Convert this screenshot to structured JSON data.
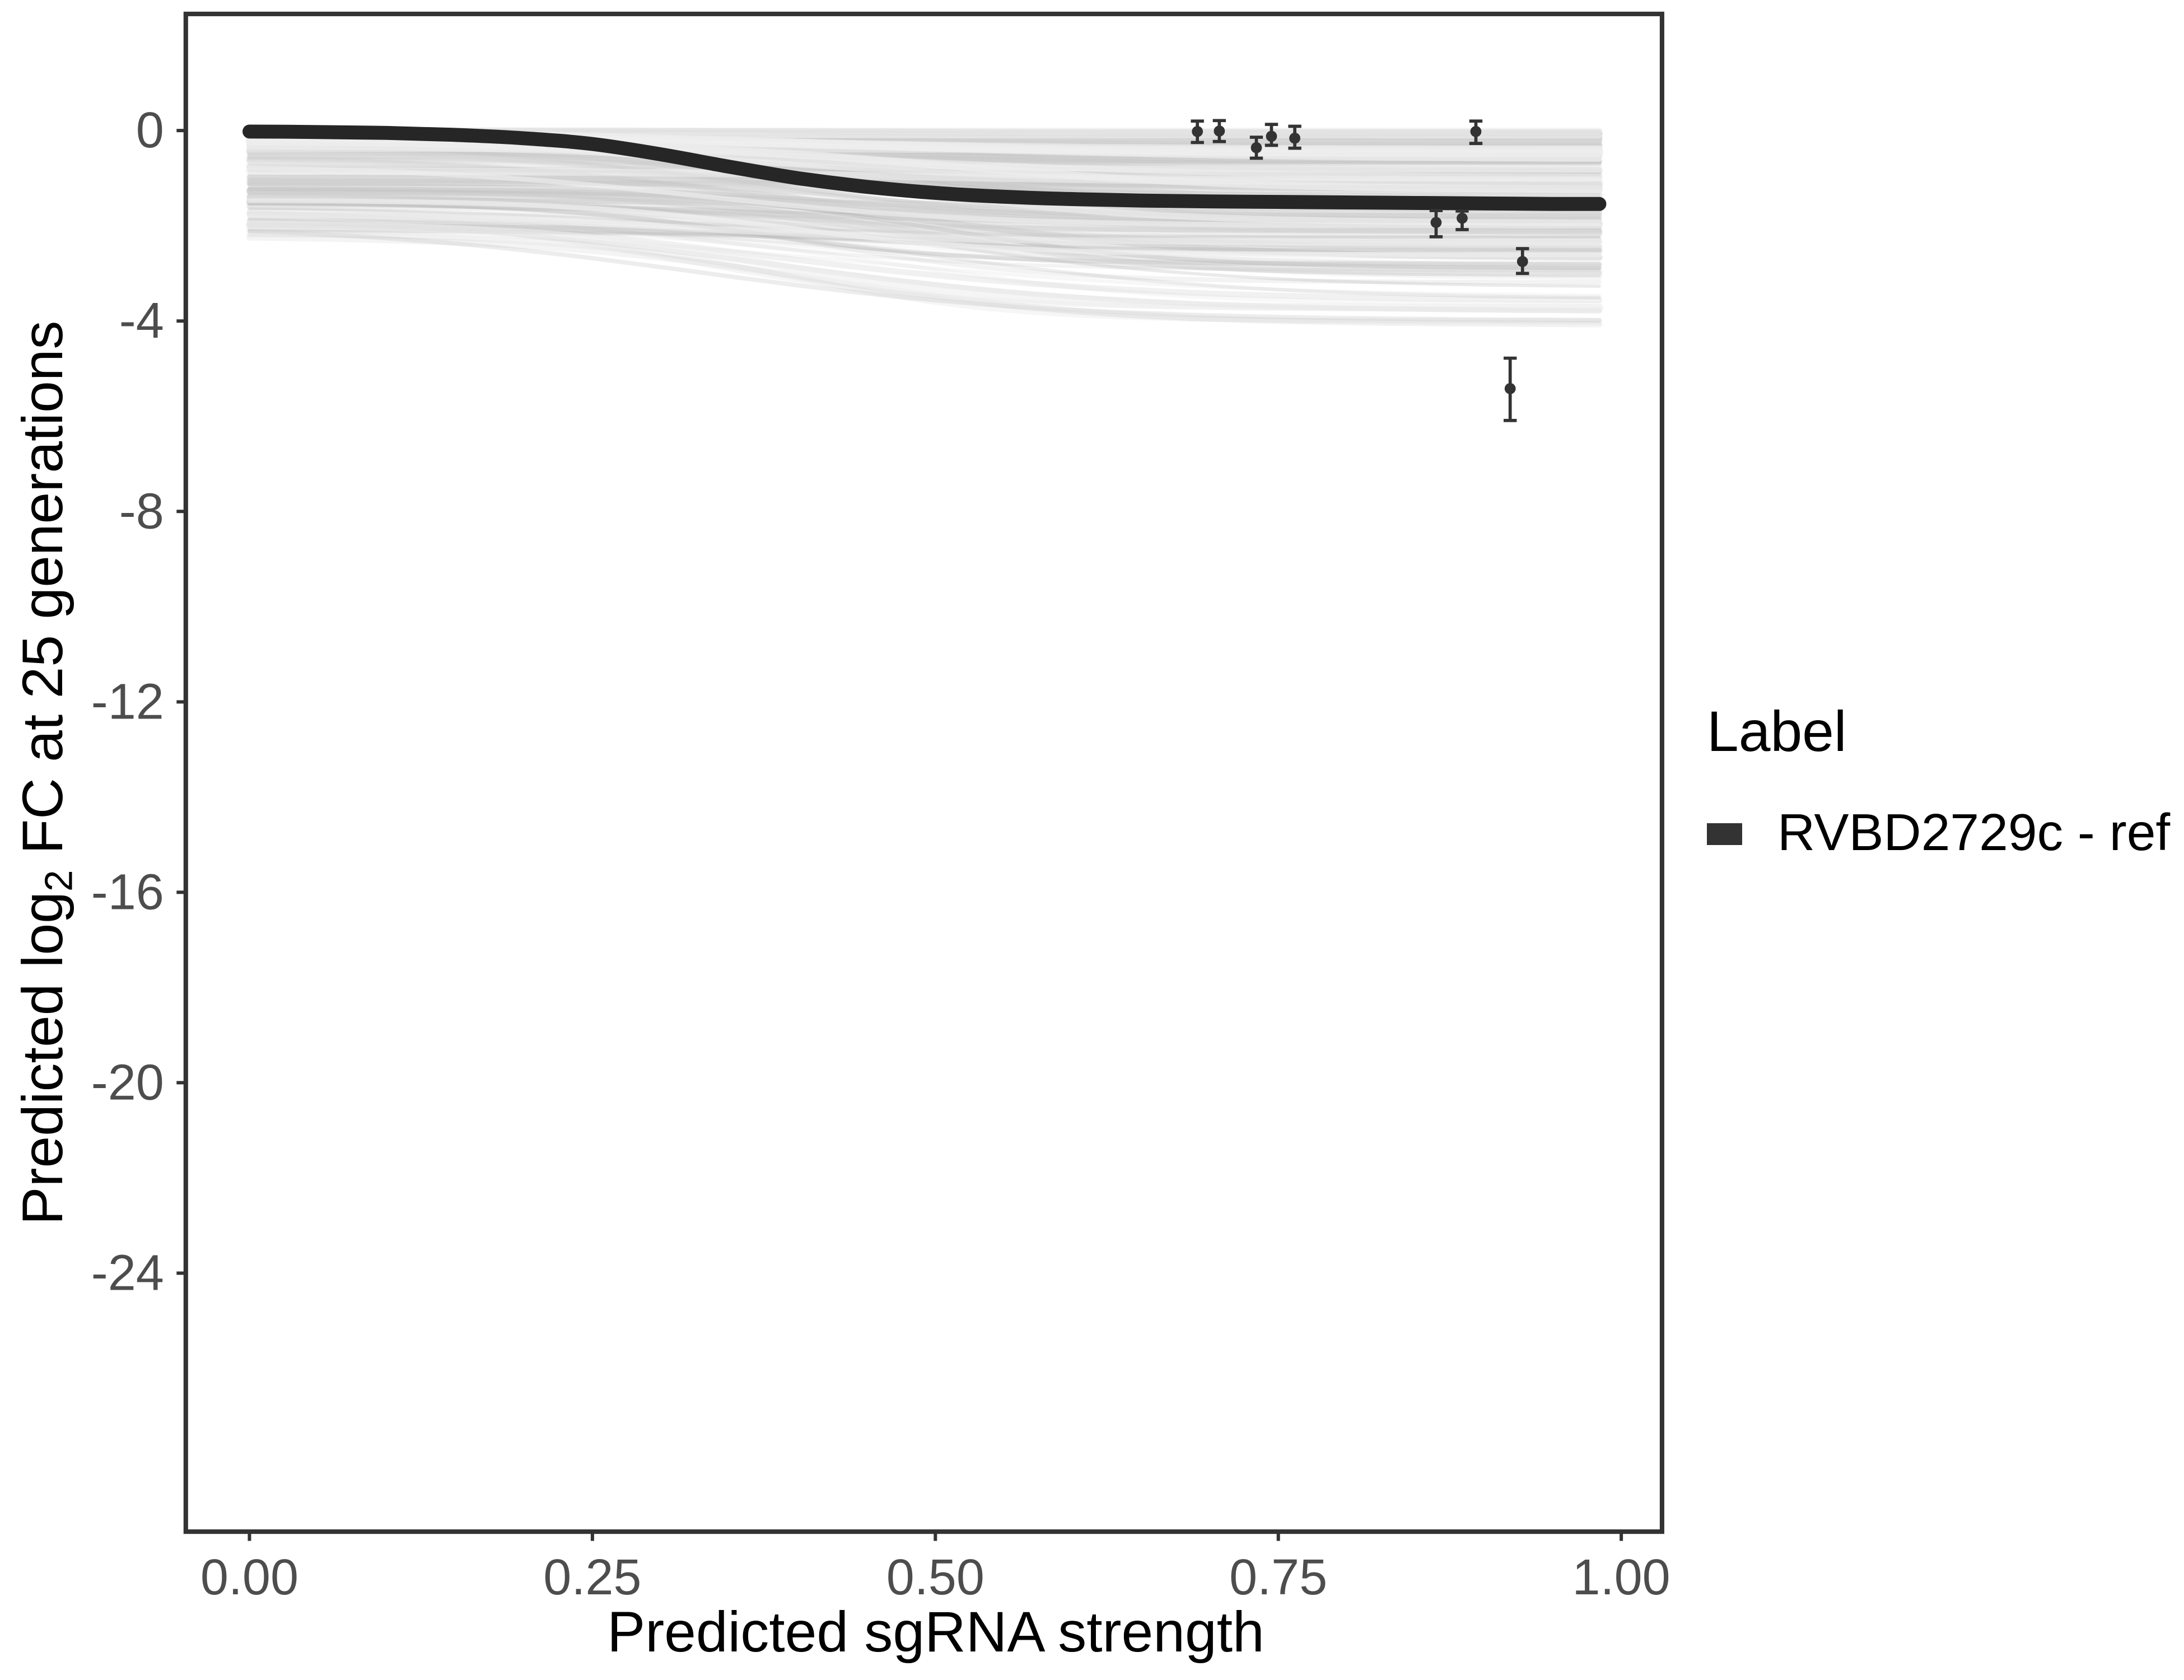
{
  "figure": {
    "background": "#ffffff",
    "panel_border_color": "#333333",
    "tick_color": "#333333",
    "tick_label_color": "#4d4d4d",
    "axis_title_color": "#000000"
  },
  "chart_data": {
    "type": "line",
    "title": "",
    "xlabel": "Predicted sgRNA strength",
    "ylabel": {
      "prefix": "Predicted log",
      "sub": "2",
      "suffix": " FC at 25 generations"
    },
    "x_axis": {
      "ticks": [
        0,
        0.25,
        0.5,
        0.75,
        1
      ],
      "tick_labels": [
        "0.00",
        "0.25",
        "0.50",
        "0.75",
        "1.00"
      ],
      "range": [
        -0.0464,
        1.0297
      ]
    },
    "y_axis": {
      "ticks": [
        0,
        -4,
        -8,
        -12,
        -16,
        -20,
        -24
      ],
      "tick_labels": [
        "0",
        "-4",
        "-8",
        "-12",
        "-16",
        "-20",
        "-24"
      ],
      "range": [
        2.45,
        -29.43
      ]
    },
    "grid": false,
    "legend": {
      "title": "Label",
      "position": "right-middle",
      "entries": [
        {
          "label": "RVBD2729c - ref",
          "color": "#333333",
          "key": "thick-line"
        }
      ]
    },
    "reference_curve": {
      "name": "RVBD2729c - ref",
      "color": "#262626",
      "stroke_width": 8.3,
      "points": [
        [
          0.0,
          -0.02
        ],
        [
          0.05,
          -0.03
        ],
        [
          0.1,
          -0.05
        ],
        [
          0.15,
          -0.09
        ],
        [
          0.2,
          -0.16
        ],
        [
          0.25,
          -0.28
        ],
        [
          0.3,
          -0.5
        ],
        [
          0.35,
          -0.76
        ],
        [
          0.4,
          -1.0
        ],
        [
          0.45,
          -1.18
        ],
        [
          0.5,
          -1.31
        ],
        [
          0.55,
          -1.39
        ],
        [
          0.6,
          -1.44
        ],
        [
          0.65,
          -1.47
        ],
        [
          0.7,
          -1.49
        ],
        [
          0.75,
          -1.5
        ],
        [
          0.8,
          -1.51
        ],
        [
          0.85,
          -1.52
        ],
        [
          0.9,
          -1.53
        ],
        [
          0.95,
          -1.54
        ],
        [
          0.984,
          -1.54
        ]
      ]
    },
    "ensemble_curves": {
      "description": "translucent grey sampled sigmoid curves forming a band from ~0 down to ~-4",
      "count": 230,
      "seed": 20,
      "x_domain": [
        0,
        0.984
      ],
      "intercept": {
        "scale": 2.25,
        "power": 2.6
      },
      "drop": {
        "scale": 2.05,
        "power": 1.7
      },
      "center_range": [
        0.3,
        0.52
      ],
      "steepness_range": [
        6.5,
        13
      ],
      "gray_range": [
        150,
        225
      ],
      "alpha_range": [
        0.1,
        0.32
      ],
      "width_range": [
        1.5,
        4.0
      ]
    },
    "data_points": {
      "color": "#333333",
      "items": [
        {
          "x": 0.691,
          "y": -0.02,
          "ymin": -0.25,
          "ymax": 0.2
        },
        {
          "x": 0.707,
          "y": -0.01,
          "ymin": -0.23,
          "ymax": 0.21
        },
        {
          "x": 0.734,
          "y": -0.36,
          "ymin": -0.58,
          "ymax": -0.14
        },
        {
          "x": 0.745,
          "y": -0.12,
          "ymin": -0.31,
          "ymax": 0.13
        },
        {
          "x": 0.762,
          "y": -0.16,
          "ymin": -0.37,
          "ymax": 0.09
        },
        {
          "x": 0.894,
          "y": -0.02,
          "ymin": -0.27,
          "ymax": 0.2
        },
        {
          "x": 0.865,
          "y": -1.93,
          "ymin": -2.23,
          "ymax": -1.68
        },
        {
          "x": 0.884,
          "y": -1.84,
          "ymin": -2.08,
          "ymax": -1.69
        },
        {
          "x": 0.928,
          "y": -2.75,
          "ymin": -3.0,
          "ymax": -2.48
        },
        {
          "x": 0.919,
          "y": -5.42,
          "ymin": -6.09,
          "ymax": -4.78
        }
      ]
    }
  }
}
